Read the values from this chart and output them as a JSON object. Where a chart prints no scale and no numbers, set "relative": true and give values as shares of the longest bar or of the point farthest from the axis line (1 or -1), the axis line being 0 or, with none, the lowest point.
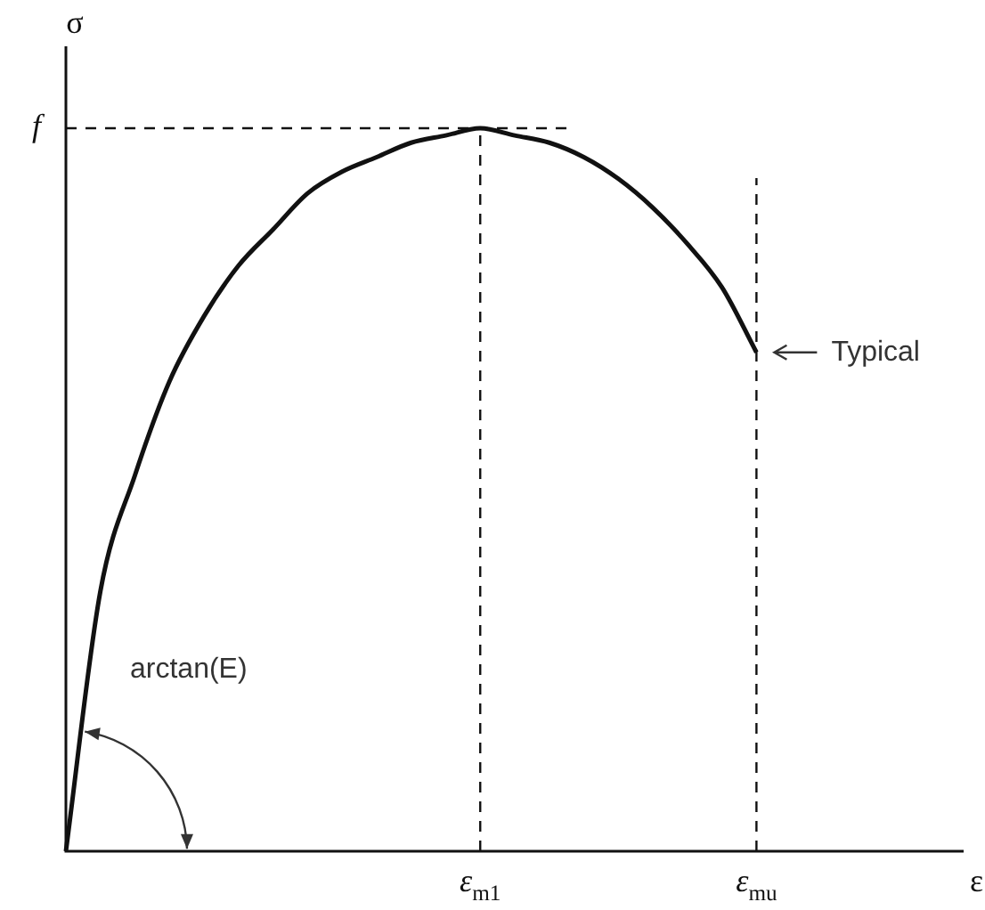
{
  "chart_data": {
    "type": "line",
    "relative": true,
    "xlabel": "ε",
    "ylabel": "σ",
    "categories": [
      null,
      null,
      null,
      null,
      null,
      null,
      null,
      null,
      null,
      null,
      null,
      null,
      "ε$_{m1}$",
      null,
      null,
      null,
      null,
      null,
      null,
      null,
      "ε$_{mu}$",
      null,
      null,
      null,
      null,
      null,
      null
    ],
    "series": [
      {
        "color": "#111111",
        "values": [
          0,
          0.36,
          0.52,
          0.65,
          0.74,
          0.81,
          0.86,
          0.91,
          0.94,
          0.96,
          0.98,
          0.99,
          1,
          0.99,
          0.98,
          0.96,
          0.93,
          0.89,
          0.84,
          0.78,
          0.69,
          null,
          null,
          null,
          null,
          null,
          null
        ]
      }
    ],
    "ref_lines": [
      {
        "axis": "y",
        "value": 1,
        "label": "f",
        "line_style": "dashed"
      },
      {
        "axis": "x",
        "value": "ε$_{m1}$",
        "line_style": "dashed"
      },
      {
        "axis": "x",
        "value": "ε$_{mu}$",
        "line_style": "dashed"
      }
    ],
    "annotations": [
      {
        "text": "Typical",
        "x": "ε$_{mu}$",
        "y": 0.69
      },
      "arctan(E)"
    ],
    "legend": false,
    "marker": "none",
    "line_style": "solid"
  }
}
